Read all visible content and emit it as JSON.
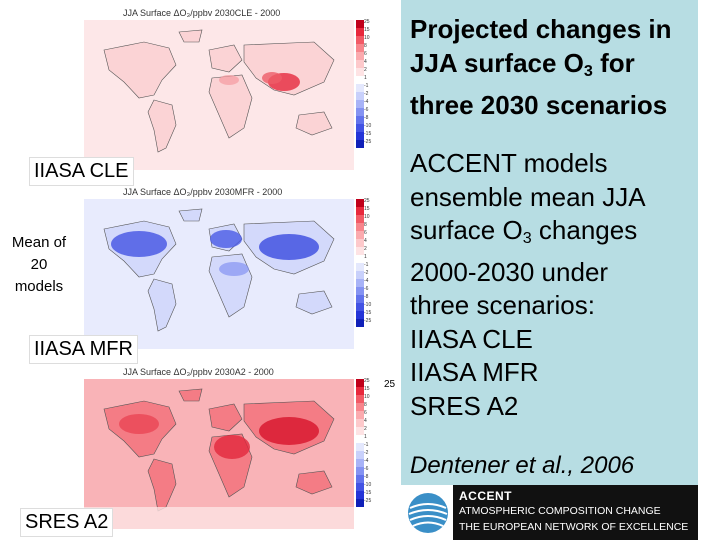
{
  "maps": [
    {
      "title": "JJA Surface ΔO₃/ppbv  2030CLE - 2000",
      "tone": "mild-increase",
      "label": "IIASA CLE"
    },
    {
      "title": "JJA Surface ΔO₃/ppbv  2030MFR - 2000",
      "tone": "decrease",
      "label": "IIASA MFR"
    },
    {
      "title": "JJA Surface ΔO₃/ppbv  2030A2 - 2000",
      "tone": "strong-increase",
      "label": "SRES A2"
    }
  ],
  "colorbar": {
    "ticks": [
      "25",
      "15",
      "10",
      "8",
      "6",
      "4",
      "2",
      "1",
      "-1",
      "-2",
      "-4",
      "-6",
      "-8",
      "-10",
      "-15",
      "-25"
    ],
    "colors": [
      "#c0001a",
      "#e8283c",
      "#f25a66",
      "#f7858c",
      "#fbaaae",
      "#fdc9cb",
      "#fee3e4",
      "#ffffff",
      "#e4e8fd",
      "#c8d0fb",
      "#a8b3f7",
      "#8593f2",
      "#6373ec",
      "#4353e4",
      "#2535d8",
      "#1020b8"
    ]
  },
  "labels": {
    "mean": [
      "Mean of",
      "20",
      "models"
    ]
  },
  "heading": {
    "line1": "Projected changes in",
    "line2_pre": "JJA surface O",
    "line2_sub": "3",
    "line2_post": " for",
    "line3": "three 2030 scenarios"
  },
  "body": {
    "line1": "ACCENT models",
    "line2": "ensemble mean JJA",
    "line3_pre": "surface O",
    "line3_sub": "3",
    "line3_post": " changes",
    "line4": "2000-2030 under",
    "line5": "three scenarios:",
    "line6": "IIASA CLE",
    "line7": "IIASA MFR",
    "line8": "SRES A2"
  },
  "citation": "Dentener et al., 2006",
  "page_number": "25",
  "accent": {
    "name": "ACCENT",
    "line2": "ATMOSPHERIC COMPOSITION CHANGE",
    "line3": "THE EUROPEAN NETWORK OF EXCELLENCE"
  }
}
